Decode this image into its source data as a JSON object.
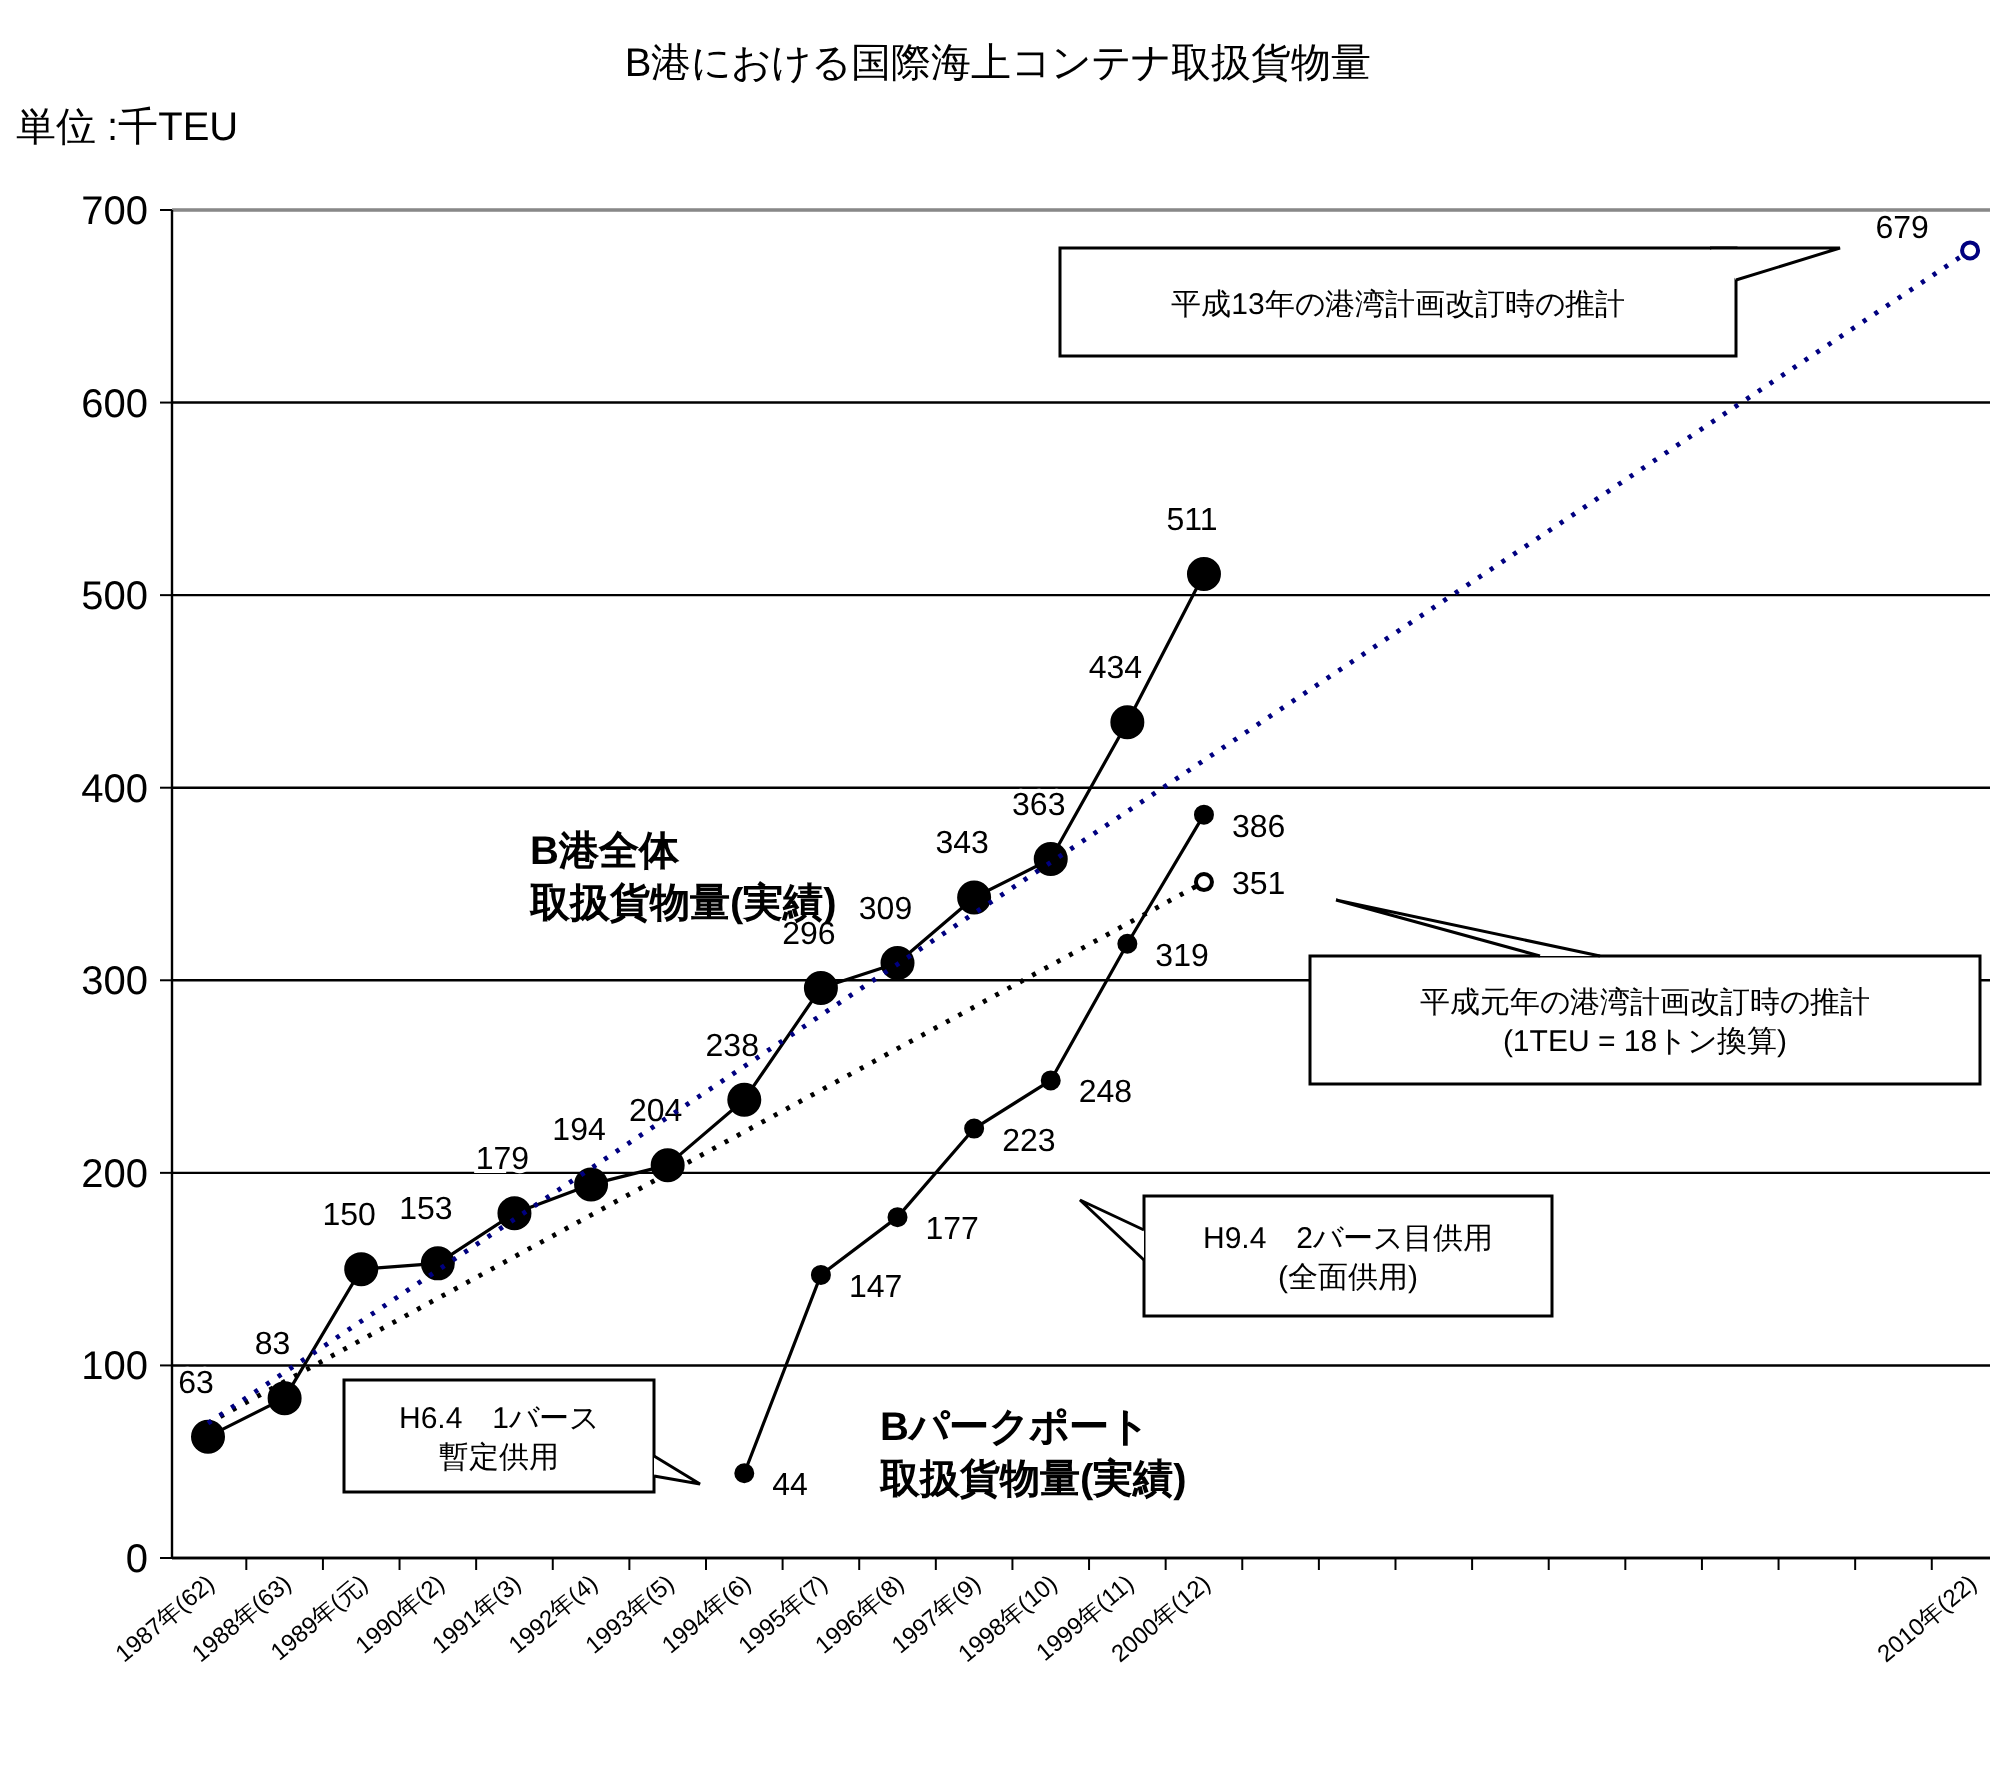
{
  "chart_data": {
    "type": "line",
    "title": "B港における国際海上コンテナ取扱貨物量",
    "ylabel": "単位 :千TEU",
    "categories": [
      "1987年(62)",
      "1988年(63)",
      "1989年(元)",
      "1990年(2)",
      "1991年(3)",
      "1992年(4)",
      "1993年(5)",
      "1994年(6)",
      "1995年(7)",
      "1996年(8)",
      "1997年(9)",
      "1998年(10)",
      "1999年(11)",
      "2000年(12)",
      null,
      null,
      null,
      null,
      null,
      null,
      null,
      null,
      null,
      "2010年(22)"
    ],
    "ylim": [
      0,
      700
    ],
    "yticks": [
      0,
      100,
      200,
      300,
      400,
      500,
      600,
      700
    ],
    "grid": "y",
    "marker": "circle",
    "series": [
      {
        "name": "B港全体取扱貨物量(実績)",
        "color": "#000000",
        "line_style": "solid",
        "values": [
          63,
          83,
          150,
          153,
          179,
          194,
          204,
          238,
          296,
          309,
          343,
          363,
          434,
          511,
          null,
          null,
          null,
          null,
          null,
          null,
          null,
          null,
          null,
          null
        ],
        "value_labels": [
          "63",
          "83",
          "150",
          "153",
          "179",
          "194",
          "204",
          "238",
          "296",
          "309",
          "343",
          "363",
          "434",
          "511",
          null,
          null,
          null,
          null,
          null,
          null,
          null,
          null,
          null,
          null
        ]
      },
      {
        "name": "Bパークポート取扱貨物量(実績)",
        "color": "#000000",
        "line_style": "solid",
        "values": [
          null,
          null,
          null,
          null,
          null,
          null,
          null,
          44,
          147,
          177,
          223,
          248,
          319,
          386,
          null,
          null,
          null,
          null,
          null,
          null,
          null,
          null,
          null,
          null
        ],
        "value_labels": [
          null,
          null,
          null,
          null,
          null,
          null,
          null,
          "44",
          "147",
          "177",
          "223",
          "248",
          "319",
          "386",
          null,
          null,
          null,
          null,
          null,
          null,
          null,
          null,
          null,
          null
        ]
      },
      {
        "color": "#000000",
        "line_style": "dotted",
        "x": [
          "1987年(62)",
          "2000年(12)"
        ],
        "values": [
          70,
          351
        ],
        "value_labels": [
          null,
          "351"
        ]
      },
      {
        "color": "#000080",
        "line_style": "dotted",
        "x": [
          "1987年(62)",
          "2010年(22)"
        ],
        "values": [
          70,
          679
        ],
        "value_labels": [
          null,
          "679"
        ]
      }
    ],
    "annotations": [
      "平成13年の港湾計画改訂時の推計",
      "平成元年の港湾計画改訂時の推計\n(1TEU = 18トン換算)",
      "H9.4　2バース目供用\n(全面供用)",
      "H6.4　1バース暫定供用"
    ]
  }
}
